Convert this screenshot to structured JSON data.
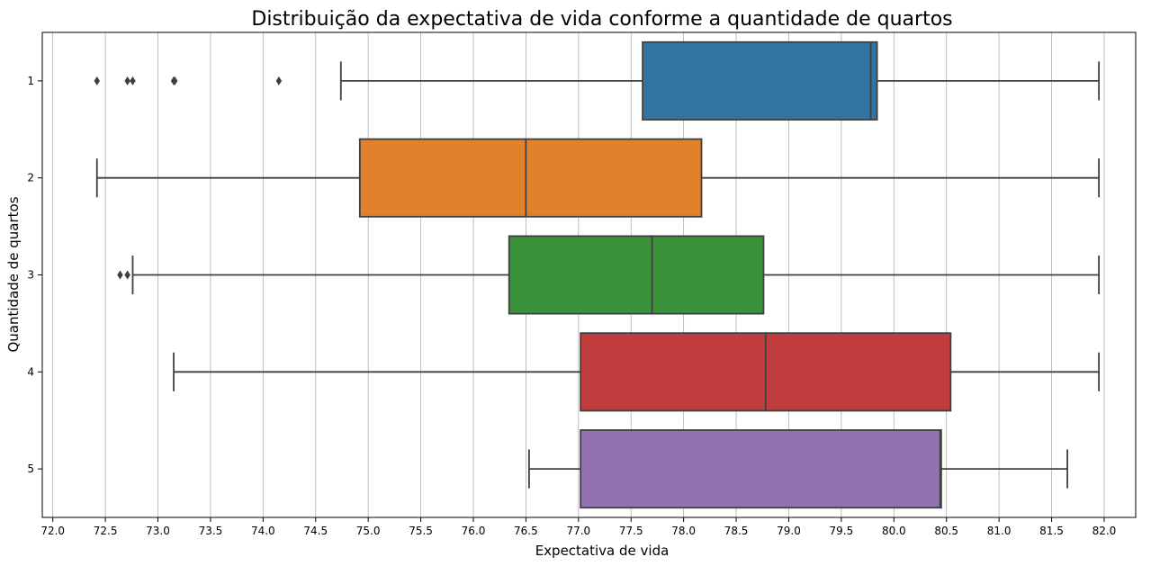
{
  "chart_data": {
    "type": "box",
    "orientation": "horizontal",
    "title": "Distribuição da expectativa de vida conforme a quantidade de quartos",
    "xlabel": "Expectativa de vida",
    "ylabel": "Quantidade de quartos",
    "xlim": [
      71.9,
      82.3
    ],
    "xticks": [
      "72.0",
      "72.5",
      "73.0",
      "73.5",
      "74.0",
      "74.5",
      "75.0",
      "75.5",
      "76.0",
      "76.5",
      "77.0",
      "77.5",
      "78.0",
      "78.5",
      "79.0",
      "79.5",
      "80.0",
      "80.5",
      "81.0",
      "81.5",
      "82.0"
    ],
    "grid": "vertical",
    "categories": [
      "1",
      "2",
      "3",
      "4",
      "5"
    ],
    "boxes": [
      {
        "category": "1",
        "color": "#3274a1",
        "whisker_low": 74.74,
        "q1": 77.61,
        "median": 79.78,
        "q3": 79.84,
        "whisker_high": 81.95,
        "outliers": [
          72.42,
          72.71,
          72.76,
          73.15,
          73.16,
          74.15
        ]
      },
      {
        "category": "2",
        "color": "#e1812c",
        "whisker_low": 72.42,
        "q1": 74.92,
        "median": 76.5,
        "q3": 78.17,
        "whisker_high": 81.95,
        "outliers": []
      },
      {
        "category": "3",
        "color": "#3a923a",
        "whisker_low": 72.76,
        "q1": 76.34,
        "median": 77.7,
        "q3": 78.76,
        "whisker_high": 81.95,
        "outliers": [
          72.64,
          72.71
        ]
      },
      {
        "category": "4",
        "color": "#c03d3e",
        "whisker_low": 73.15,
        "q1": 77.02,
        "median": 78.78,
        "q3": 80.54,
        "whisker_high": 81.95,
        "outliers": []
      },
      {
        "category": "5",
        "color": "#9372b2",
        "whisker_low": 76.53,
        "q1": 77.02,
        "median": 80.44,
        "q3": 80.45,
        "whisker_high": 81.65,
        "outliers": []
      }
    ]
  }
}
